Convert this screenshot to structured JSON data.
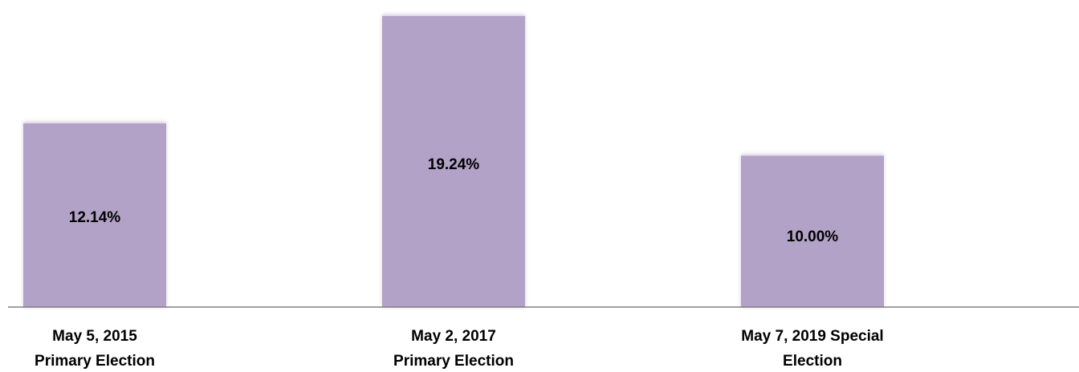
{
  "chart_data": {
    "type": "bar",
    "categories": [
      [
        "May 5, 2015",
        "Primary Election"
      ],
      [
        "May 2, 2017",
        "Primary Election"
      ],
      [
        "May 7, 2019 Special",
        "Election"
      ]
    ],
    "values": [
      12.14,
      19.24,
      10.0
    ],
    "data_labels": [
      "12.14%",
      "19.24%",
      "10.00%"
    ],
    "title": "",
    "xlabel": "",
    "ylabel": "",
    "ylim": [
      0,
      19.24
    ],
    "grid": false,
    "legend": "none",
    "bar_color": "#b3a2c7",
    "axis_color": "#808080"
  }
}
